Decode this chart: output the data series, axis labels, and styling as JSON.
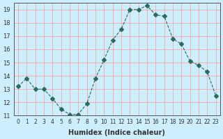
{
  "x": [
    0,
    1,
    2,
    3,
    4,
    5,
    6,
    7,
    8,
    9,
    10,
    11,
    12,
    13,
    14,
    15,
    16,
    17,
    18,
    19,
    20,
    21,
    22,
    23
  ],
  "y": [
    13.2,
    13.8,
    13.0,
    13.0,
    12.3,
    11.5,
    11.1,
    11.1,
    11.9,
    13.8,
    15.2,
    16.7,
    17.5,
    19.0,
    19.0,
    19.3,
    18.6,
    18.5,
    16.8,
    16.4,
    15.1,
    14.8,
    14.3,
    12.5
  ],
  "line_color": "#2e6b5e",
  "marker": "D",
  "marker_size": 3,
  "bg_color": "#cceeff",
  "grid_color": "#ff9999",
  "grid_color2": "#ffffff",
  "xlabel": "Humidex (Indice chaleur)",
  "ylim": [
    11,
    19.5
  ],
  "yticks": [
    11,
    12,
    13,
    14,
    15,
    16,
    17,
    18,
    19
  ],
  "xticks": [
    0,
    1,
    2,
    3,
    4,
    5,
    6,
    7,
    8,
    9,
    10,
    11,
    12,
    13,
    14,
    15,
    16,
    17,
    18,
    19,
    20,
    21,
    22,
    23
  ],
  "xtick_labels": [
    "0",
    "1",
    "2",
    "3",
    "4",
    "5",
    "6",
    "7",
    "8",
    "9",
    "10",
    "11",
    "12",
    "13",
    "14",
    "15",
    "16",
    "17",
    "18",
    "19",
    "20",
    "21",
    "22",
    "23"
  ]
}
